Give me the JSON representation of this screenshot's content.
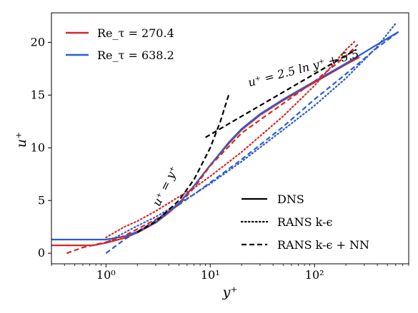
{
  "chart_data": {
    "type": "line",
    "xlabel": "y⁺",
    "ylabel": "u⁺",
    "xscale": "log",
    "xlim": [
      0.3,
      800
    ],
    "ylim": [
      -1.0,
      22.8
    ],
    "x_ticks": [
      {
        "value": 1,
        "label": "10⁰"
      },
      {
        "value": 10,
        "label": "10¹"
      },
      {
        "value": 100,
        "label": "10²"
      }
    ],
    "y_ticks": [
      {
        "value": 0,
        "label": "0"
      },
      {
        "value": 5,
        "label": "5"
      },
      {
        "value": 10,
        "label": "10"
      },
      {
        "value": 15,
        "label": "15"
      },
      {
        "value": 20,
        "label": "20"
      }
    ],
    "grid": false,
    "colors": {
      "re270": "#d62728",
      "re638": "#2b5ccf",
      "reference": "#000000"
    },
    "legend_top": {
      "placement": "top-left",
      "entries": [
        {
          "label": "Re_τ = 270.4",
          "color": "#d62728"
        },
        {
          "label": "Re_τ = 638.2",
          "color": "#2b5ccf"
        }
      ]
    },
    "legend_bottom": {
      "placement": "bottom-right",
      "entries": [
        {
          "label": "DNS",
          "dash": "solid"
        },
        {
          "label": "RANS k-ϵ",
          "dash": "dotted"
        },
        {
          "label": "RANS k-ϵ + NN",
          "dash": "dashed"
        }
      ]
    },
    "annotations": [
      {
        "text": "u⁺ = y⁺",
        "x": 4.0,
        "y": 6.2,
        "angle": -64
      },
      {
        "text": "u⁺ = 2.5 ln y⁺ + 5.5",
        "x": 80,
        "y": 17.2,
        "angle": -15
      }
    ],
    "series": [
      {
        "name": "DNS Re_τ=270.4",
        "color": "#d62728",
        "dash": "solid",
        "x": [
          0.3,
          0.75,
          1.0,
          1.5,
          2,
          3,
          4,
          5,
          7,
          10,
          15,
          20,
          30,
          50,
          100,
          200,
          270
        ],
        "y": [
          0.75,
          0.75,
          0.98,
          1.45,
          1.95,
          2.9,
          3.85,
          4.7,
          6.4,
          8.35,
          10.4,
          11.7,
          13.1,
          14.5,
          16.2,
          17.9,
          18.6
        ]
      },
      {
        "name": "DNS Re_τ=638.2",
        "color": "#2b5ccf",
        "dash": "solid",
        "x": [
          0.3,
          0.8,
          1.0,
          1.5,
          2,
          3,
          4,
          5,
          7,
          10,
          15,
          20,
          30,
          50,
          100,
          200,
          400,
          640
        ],
        "y": [
          1.3,
          1.3,
          1.3,
          1.6,
          2.05,
          2.95,
          3.9,
          4.75,
          6.4,
          8.35,
          10.5,
          11.8,
          13.2,
          14.6,
          16.3,
          18.0,
          19.8,
          21.0
        ]
      },
      {
        "name": "RANS k-ϵ Re_τ=270.4",
        "color": "#d62728",
        "dash": "dotted",
        "x": [
          1.0,
          1.5,
          2,
          3,
          5,
          7,
          10,
          20,
          50,
          100,
          200,
          250
        ],
        "y": [
          1.5,
          2.5,
          3.05,
          4.0,
          5.35,
          6.2,
          7.3,
          9.6,
          13.0,
          15.9,
          19.3,
          20.2
        ]
      },
      {
        "name": "RANS k-ϵ Re_τ=638.2",
        "color": "#2b5ccf",
        "dash": "dotted",
        "x": [
          1.0,
          1.5,
          2,
          3,
          5,
          7,
          10,
          20,
          50,
          100,
          200,
          400,
          600
        ],
        "y": [
          1.0,
          1.95,
          2.6,
          3.45,
          4.7,
          5.6,
          6.6,
          8.7,
          11.7,
          14.0,
          16.6,
          19.6,
          21.8
        ]
      },
      {
        "name": "RANS k-ϵ + NN Re_τ=270.4",
        "color": "#d62728",
        "dash": "dashed",
        "x": [
          0.42,
          0.6,
          1.0,
          1.5,
          2,
          3,
          5,
          7,
          10,
          20,
          50,
          100,
          200,
          260
        ],
        "y": [
          0.0,
          0.55,
          1.05,
          1.65,
          2.3,
          3.2,
          4.6,
          6.2,
          8.3,
          11.4,
          14.2,
          16.3,
          18.7,
          19.8
        ]
      },
      {
        "name": "RANS k-ϵ + NN Re_τ=638.2",
        "color": "#2b5ccf",
        "dash": "dashed",
        "x": [
          1.0,
          1.5,
          2,
          3,
          5,
          7,
          10,
          20,
          50,
          100,
          200,
          400,
          620
        ],
        "y": [
          0.0,
          1.3,
          2.05,
          3.1,
          4.6,
          5.6,
          6.7,
          8.9,
          12.0,
          14.6,
          17.0,
          19.5,
          20.9
        ]
      },
      {
        "name": "u⁺ = y⁺",
        "color": "#000000",
        "dash": "dashed",
        "x": [
          2.0,
          3,
          5,
          7,
          10,
          12.5,
          15
        ],
        "y": [
          2.0,
          3.0,
          5.0,
          7.0,
          10.0,
          12.5,
          15.0
        ]
      },
      {
        "name": "u⁺ = 2.5 ln y⁺ + 5.5",
        "color": "#000000",
        "dash": "dashed",
        "x": [
          9,
          20,
          50,
          100,
          200,
          250
        ],
        "y": [
          10.99,
          12.99,
          15.28,
          17.01,
          18.75,
          19.3
        ]
      }
    ]
  }
}
